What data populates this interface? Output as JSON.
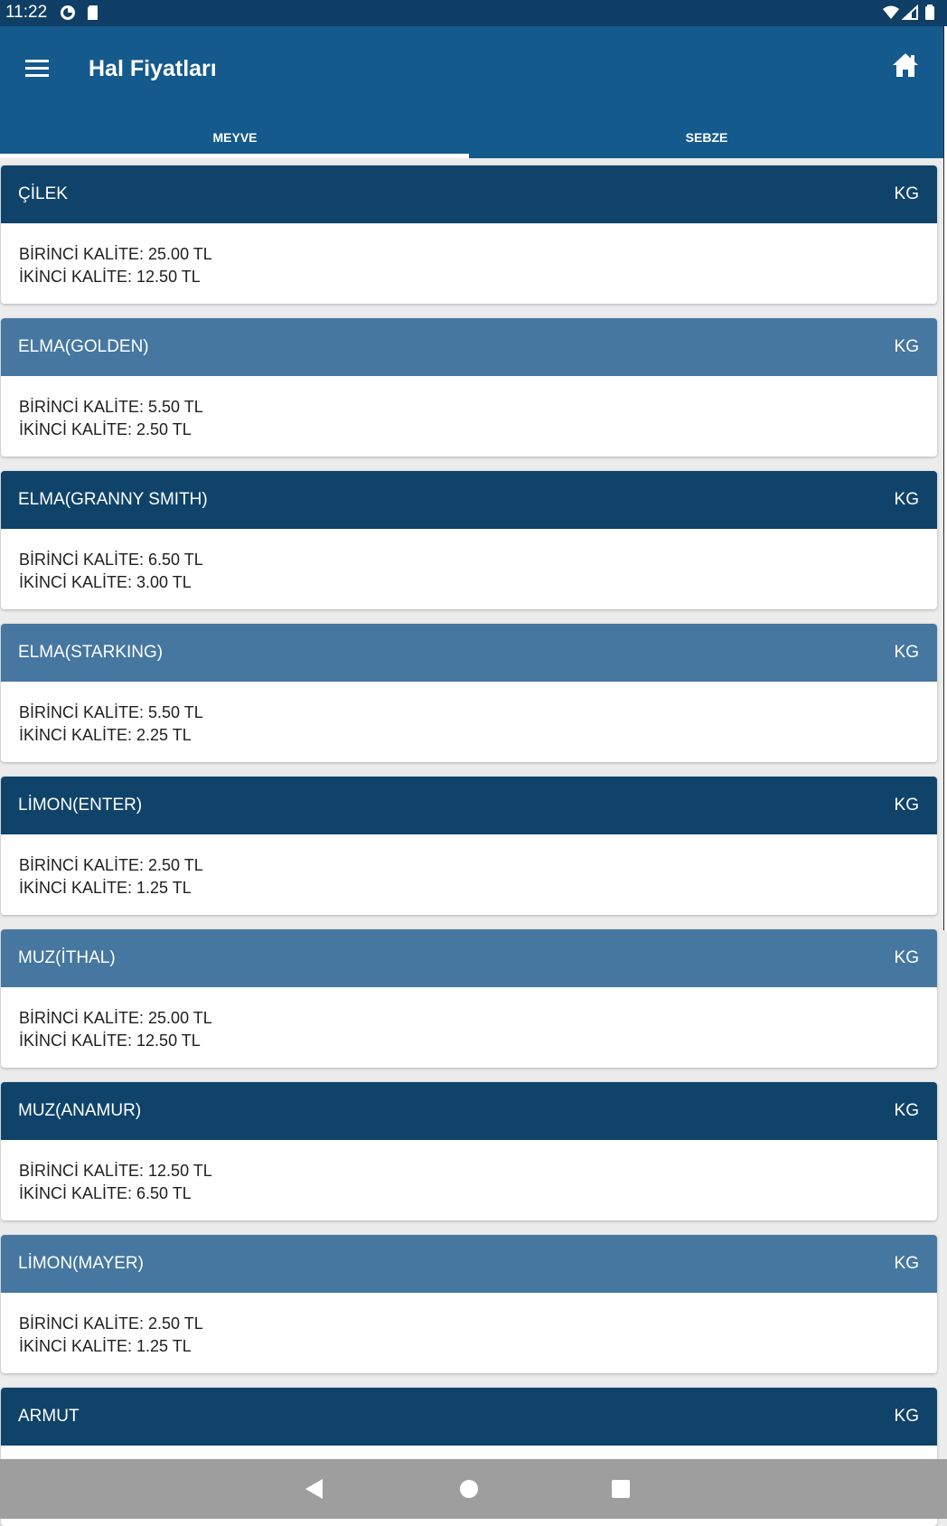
{
  "status_bar": {
    "time": "11:22"
  },
  "app_bar": {
    "title": "Hal Fiyatları"
  },
  "tabs": [
    {
      "label": "MEYVE",
      "selected": true
    },
    {
      "label": "SEBZE",
      "selected": false
    }
  ],
  "items": [
    {
      "name": "ÇİLEK",
      "unit": "KG",
      "first": "BİRİNCİ KALİTE: 25.00 TL",
      "second": "İKİNCİ KALİTE: 12.50 TL"
    },
    {
      "name": "ELMA(GOLDEN)",
      "unit": "KG",
      "first": "BİRİNCİ KALİTE: 5.50 TL",
      "second": "İKİNCİ KALİTE: 2.50 TL"
    },
    {
      "name": "ELMA(GRANNY SMITH)",
      "unit": "KG",
      "first": "BİRİNCİ KALİTE: 6.50 TL",
      "second": "İKİNCİ KALİTE: 3.00 TL"
    },
    {
      "name": "ELMA(STARKING)",
      "unit": "KG",
      "first": "BİRİNCİ KALİTE: 5.50 TL",
      "second": "İKİNCİ KALİTE: 2.25 TL"
    },
    {
      "name": "LİMON(ENTER)",
      "unit": "KG",
      "first": "BİRİNCİ KALİTE: 2.50 TL",
      "second": "İKİNCİ KALİTE: 1.25 TL"
    },
    {
      "name": "MUZ(İTHAL)",
      "unit": "KG",
      "first": "BİRİNCİ KALİTE: 25.00 TL",
      "second": "İKİNCİ KALİTE: 12.50 TL"
    },
    {
      "name": "MUZ(ANAMUR)",
      "unit": "KG",
      "first": "BİRİNCİ KALİTE: 12.50 TL",
      "second": "İKİNCİ KALİTE: 6.50 TL"
    },
    {
      "name": "LİMON(MAYER)",
      "unit": "KG",
      "first": "BİRİNCİ KALİTE: 2.50 TL",
      "second": "İKİNCİ KALİTE: 1.25 TL"
    },
    {
      "name": "ARMUT",
      "unit": "KG",
      "first": "",
      "second": ""
    }
  ],
  "colors": {
    "status_bar": "#0f3f66",
    "app_bar": "#145a8c",
    "card_header_dark": "#0f436a",
    "card_header_light": "#4577a0",
    "nav_bar": "#9e9e9e"
  },
  "icons": {
    "menu": "hamburger-menu-icon",
    "home": "home-icon",
    "back": "back-triangle-icon",
    "nav_home": "circle-home-icon",
    "recents": "square-recents-icon"
  }
}
